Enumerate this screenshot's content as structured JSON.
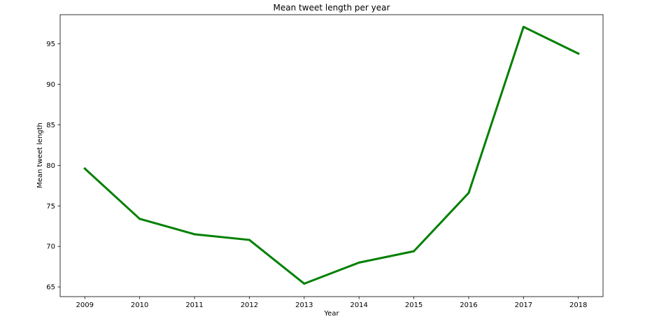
{
  "chart_data": {
    "type": "line",
    "title": "Mean tweet length per year",
    "xlabel": "Year",
    "ylabel": "Mean tweet length",
    "x": [
      2009,
      2010,
      2011,
      2012,
      2013,
      2014,
      2015,
      2016,
      2017,
      2018
    ],
    "x_tick_labels": [
      "2009",
      "2010",
      "2011",
      "2012",
      "2013",
      "2014",
      "2015",
      "2016",
      "2017",
      "2018"
    ],
    "series": [
      {
        "values": [
          79.6,
          73.4,
          71.5,
          70.8,
          65.4,
          68.0,
          69.4,
          76.6,
          97.1,
          93.8
        ],
        "color": "#008000"
      }
    ],
    "xlim": [
      2008.55,
      2018.45
    ],
    "ylim": [
      63.8,
      98.6
    ],
    "y_ticks": [
      65,
      70,
      75,
      80,
      85,
      90,
      95
    ],
    "y_tick_labels": [
      "65",
      "70",
      "75",
      "80",
      "85",
      "90",
      "95"
    ],
    "grid": false,
    "legend": "none"
  }
}
